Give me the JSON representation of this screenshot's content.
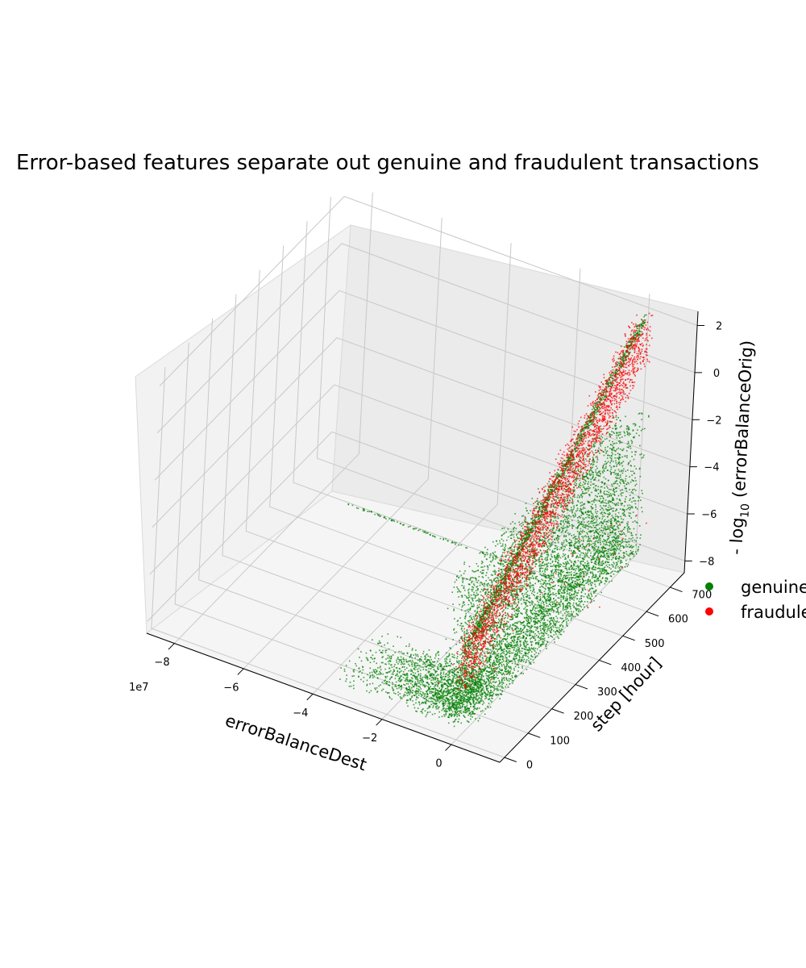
{
  "chart_data": {
    "type": "scatter",
    "projection": "3d",
    "title": "Error-based features separate out genuine and fraudulent transactions",
    "xlabel": "errorBalanceDest",
    "ylabel": "step [hour]",
    "zlabel_prefix": "- log",
    "zlabel_sub": "10",
    "zlabel_suffix": " (errorBalanceOrig)",
    "x_offset_label": "1e7",
    "x_ticks": [
      -8,
      -6,
      -4,
      -2,
      0
    ],
    "y_ticks": [
      0,
      100,
      200,
      300,
      400,
      500,
      600,
      700
    ],
    "z_ticks": [
      -8,
      -6,
      -4,
      -2,
      0,
      2
    ],
    "xlim": [
      -8.8,
      1.4
    ],
    "ylim": [
      -20,
      760
    ],
    "zlim": [
      -8.5,
      2.6
    ],
    "grid": true,
    "legend_position": "right",
    "series": [
      {
        "name": "genuine",
        "color": "#008000",
        "clusters": [
          {
            "kind": "diagonal",
            "x": [
              0.0,
              0.0
            ],
            "y": [
              10,
              743
            ],
            "z": [
              -4.7,
              2.0
            ],
            "spread": 0.12,
            "count": 1200
          },
          {
            "kind": "wall",
            "x": [
              -0.6,
              0.3
            ],
            "y": [
              20,
              740
            ],
            "z": [
              -8.0,
              -2.0
            ],
            "count": 6000
          },
          {
            "kind": "line",
            "x": [
              -7.0,
              -0.2
            ],
            "y": [
              560,
              560
            ],
            "z": [
              -8.0,
              -8.0
            ],
            "count": 140
          },
          {
            "kind": "blob",
            "x": [
              -3.5,
              0.0
            ],
            "y": [
              0,
              150
            ],
            "z": [
              -8.0,
              -7.0
            ],
            "count": 1600
          }
        ]
      },
      {
        "name": "fraudulent",
        "color": "#ff0000",
        "clusters": [
          {
            "kind": "diagonal",
            "x": [
              0.0,
              0.0
            ],
            "y": [
              10,
              743
            ],
            "z": [
              -4.6,
              2.1
            ],
            "spread": 0.5,
            "count": 2600
          },
          {
            "kind": "sparse",
            "x": [
              -1.0,
              0.8
            ],
            "y": [
              0,
              743
            ],
            "z": [
              -8.0,
              -6.0
            ],
            "count": 45
          }
        ]
      }
    ]
  }
}
